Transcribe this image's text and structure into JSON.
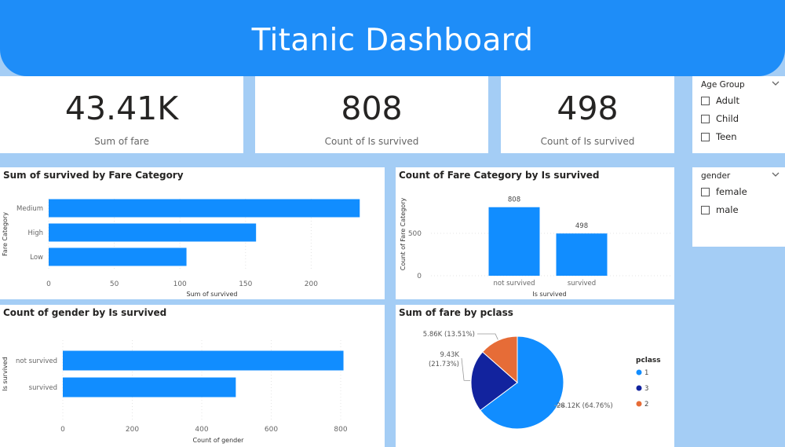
{
  "header": {
    "title": "Titanic Dashboard"
  },
  "kpis": [
    {
      "value": "43.41K",
      "label": "Sum of fare"
    },
    {
      "value": "808",
      "label": "Count of Is survived"
    },
    {
      "value": "498",
      "label": "Count of Is survived"
    }
  ],
  "slicers": {
    "age_group": {
      "title": "Age Group",
      "options": [
        "Adult",
        "Child",
        "Teen"
      ]
    },
    "gender": {
      "title": "gender",
      "options": [
        "female",
        "male"
      ]
    }
  },
  "colors": {
    "accent": "#1e8df8",
    "bar": "#118dff",
    "pie_1": "#118dff",
    "pie_3": "#12239e",
    "pie_2": "#e66c37",
    "background": "#a4cdf5"
  },
  "chart_data": [
    {
      "type": "bar",
      "orientation": "horizontal",
      "title": "Sum of survived by Fare Category",
      "xlabel": "Sum of survived",
      "ylabel": "Fare Category",
      "categories": [
        "Medium",
        "High",
        "Low"
      ],
      "values": [
        237,
        158,
        105
      ],
      "xticks": [
        "0",
        "50",
        "100",
        "150",
        "200"
      ],
      "xlim": [
        0,
        250
      ],
      "grid": true
    },
    {
      "type": "bar",
      "title": "Count of Fare Category by Is survived",
      "xlabel": "Is survived",
      "ylabel": "Count of Fare Category",
      "categories": [
        "not survived",
        "survived"
      ],
      "values": [
        808,
        498
      ],
      "data_labels": [
        "808",
        "498"
      ],
      "yticks": [
        "0",
        "500"
      ],
      "ylim": [
        0,
        1000
      ],
      "grid": true
    },
    {
      "type": "bar",
      "orientation": "horizontal",
      "title": "Count of gender by Is survived",
      "xlabel": "Count of gender",
      "ylabel": "Is survived",
      "categories": [
        "not survived",
        "survived"
      ],
      "values": [
        808,
        498
      ],
      "xticks": [
        "0",
        "200",
        "400",
        "600",
        "800"
      ],
      "xlim": [
        0,
        800
      ],
      "grid": true
    },
    {
      "type": "pie",
      "title": "Sum of fare by pclass",
      "legend_title": "pclass",
      "legend_position": "right",
      "slices": [
        {
          "name": "1",
          "value": 28.12,
          "label": "28.12K (64.76%)"
        },
        {
          "name": "3",
          "value": 9.43,
          "label": "9.43K (21.73%)"
        },
        {
          "name": "2",
          "value": 5.86,
          "label": "5.86K (13.51%)"
        }
      ]
    }
  ]
}
